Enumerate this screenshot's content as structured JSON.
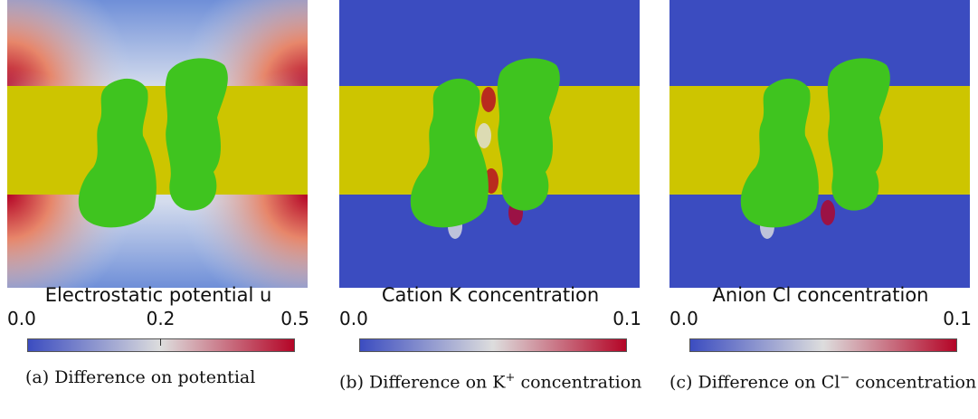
{
  "panels": [
    {
      "colorbar": {
        "title": "Electrostatic potential u",
        "ticks": [
          "0.0",
          "0.2",
          "0.5"
        ]
      },
      "caption": {
        "label": "(a)",
        "text": "Difference on potential"
      }
    },
    {
      "colorbar": {
        "title": "Cation K concentration",
        "ticks": [
          "0.0",
          "0.1"
        ]
      },
      "caption": {
        "label": "(b)",
        "text": "Difference on K",
        "superscript": "+",
        "text_end": "concentration"
      }
    },
    {
      "colorbar": {
        "title": "Anion Cl concentration",
        "ticks": [
          "0.0",
          "0.1"
        ]
      },
      "caption": {
        "label": "(c)",
        "text": "Difference on Cl",
        "superscript": "−",
        "text_end": "concentration"
      }
    }
  ]
}
